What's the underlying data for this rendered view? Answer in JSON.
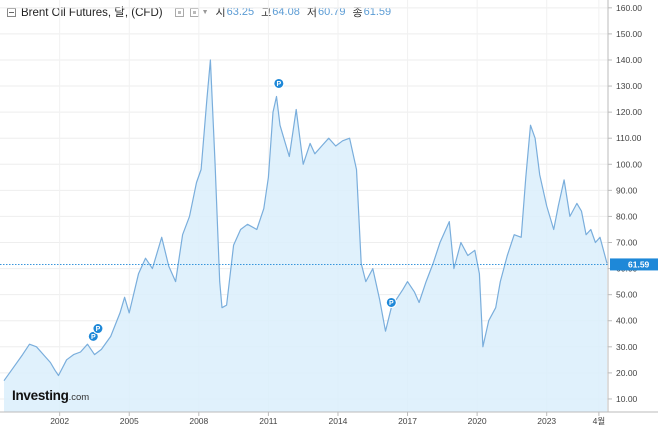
{
  "header": {
    "title": "Brent Oil Futures, 달, (CFD)",
    "ohlc": [
      {
        "label": "시",
        "value": "63.25"
      },
      {
        "label": "고",
        "value": "64.08"
      },
      {
        "label": "저",
        "value": "60.79"
      },
      {
        "label": "종",
        "value": "61.59"
      }
    ]
  },
  "logo": {
    "main": "Investing",
    "suffix": ".com"
  },
  "colors": {
    "line": "#7aaedc",
    "fill": "#dbeefb",
    "accent": "#1e88d8",
    "text": "#444444"
  },
  "chart_data": {
    "type": "area",
    "title": "Brent Oil Futures, 달, (CFD)",
    "xlabel": "",
    "ylabel": "",
    "ylim": [
      5,
      163
    ],
    "y_ticks": [
      10,
      20,
      30,
      40,
      50,
      60,
      70,
      80,
      90,
      100,
      110,
      120,
      130,
      140,
      150,
      160
    ],
    "y_tick_labels": [
      "10.00",
      "20.00",
      "30.00",
      "40.00",
      "50.00",
      "60.00",
      "70.00",
      "80.00",
      "90.00",
      "100.00",
      "110.00",
      "120.00",
      "130.00",
      "140.00",
      "150.00",
      "160.00"
    ],
    "x_ticks": [
      {
        "label": "2002",
        "x": 2002.0
      },
      {
        "label": "2005",
        "x": 2005.0
      },
      {
        "label": "2008",
        "x": 2008.0
      },
      {
        "label": "2011",
        "x": 2011.0
      },
      {
        "label": "2014",
        "x": 2014.0
      },
      {
        "label": "2017",
        "x": 2017.0
      },
      {
        "label": "2020",
        "x": 2020.0
      },
      {
        "label": "2023",
        "x": 2023.0
      },
      {
        "label": "4월",
        "x": 2025.25
      }
    ],
    "grid": true,
    "last_price": 61.59,
    "last_price_label": "61.59",
    "markers": [
      {
        "x": 2003.45,
        "y": 34,
        "label": "P"
      },
      {
        "x": 2003.65,
        "y": 37,
        "label": "P"
      },
      {
        "x": 2011.45,
        "y": 131,
        "label": "P"
      },
      {
        "x": 2016.3,
        "y": 47,
        "label": "P"
      }
    ],
    "series": [
      {
        "x": [
          1999.6,
          2000.0,
          2000.4,
          2000.7,
          2001.0,
          2001.3,
          2001.6,
          2001.8,
          2001.95,
          2002.3,
          2002.6,
          2002.9,
          2003.2,
          2003.5,
          2003.8,
          2004.2,
          2004.6,
          2004.8,
          2005.0,
          2005.4,
          2005.7,
          2006.0,
          2006.4,
          2006.7,
          2007.0,
          2007.3,
          2007.6,
          2007.9,
          2008.1,
          2008.35,
          2008.5,
          2008.7,
          2008.9,
          2009.0,
          2009.2,
          2009.5,
          2009.8,
          2010.1,
          2010.5,
          2010.8,
          2011.0,
          2011.2,
          2011.35,
          2011.5,
          2011.7,
          2011.9,
          2012.2,
          2012.5,
          2012.8,
          2013.0,
          2013.3,
          2013.6,
          2013.9,
          2014.2,
          2014.5,
          2014.8,
          2015.0,
          2015.2,
          2015.5,
          2015.8,
          2016.05,
          2016.3,
          2016.5,
          2016.8,
          2017.0,
          2017.3,
          2017.5,
          2017.8,
          2018.1,
          2018.4,
          2018.8,
          2019.0,
          2019.3,
          2019.6,
          2019.9,
          2020.1,
          2020.25,
          2020.5,
          2020.8,
          2021.0,
          2021.3,
          2021.6,
          2021.9,
          2022.1,
          2022.3,
          2022.5,
          2022.7,
          2023.0,
          2023.3,
          2023.5,
          2023.75,
          2024.0,
          2024.3,
          2024.5,
          2024.7,
          2024.9,
          2025.1,
          2025.3,
          2025.6
        ],
        "values": [
          17,
          22,
          27,
          31,
          30,
          27,
          24,
          21,
          19,
          25,
          27,
          28,
          31,
          27,
          29,
          34,
          43,
          49,
          43,
          58,
          64,
          60,
          72,
          61,
          55,
          73,
          80,
          93,
          98,
          125,
          140,
          100,
          55,
          45,
          46,
          69,
          75,
          77,
          75,
          83,
          95,
          120,
          126,
          115,
          109,
          103,
          121,
          100,
          108,
          104,
          107,
          110,
          107,
          109,
          110,
          98,
          62,
          55,
          60,
          48,
          36,
          45,
          48,
          52,
          55,
          51,
          47,
          55,
          62,
          70,
          78,
          60,
          70,
          65,
          67,
          58,
          30,
          40,
          45,
          55,
          65,
          73,
          72,
          95,
          115,
          110,
          96,
          84,
          75,
          84,
          94,
          80,
          85,
          82,
          73,
          75,
          70,
          72,
          62
        ]
      }
    ]
  }
}
